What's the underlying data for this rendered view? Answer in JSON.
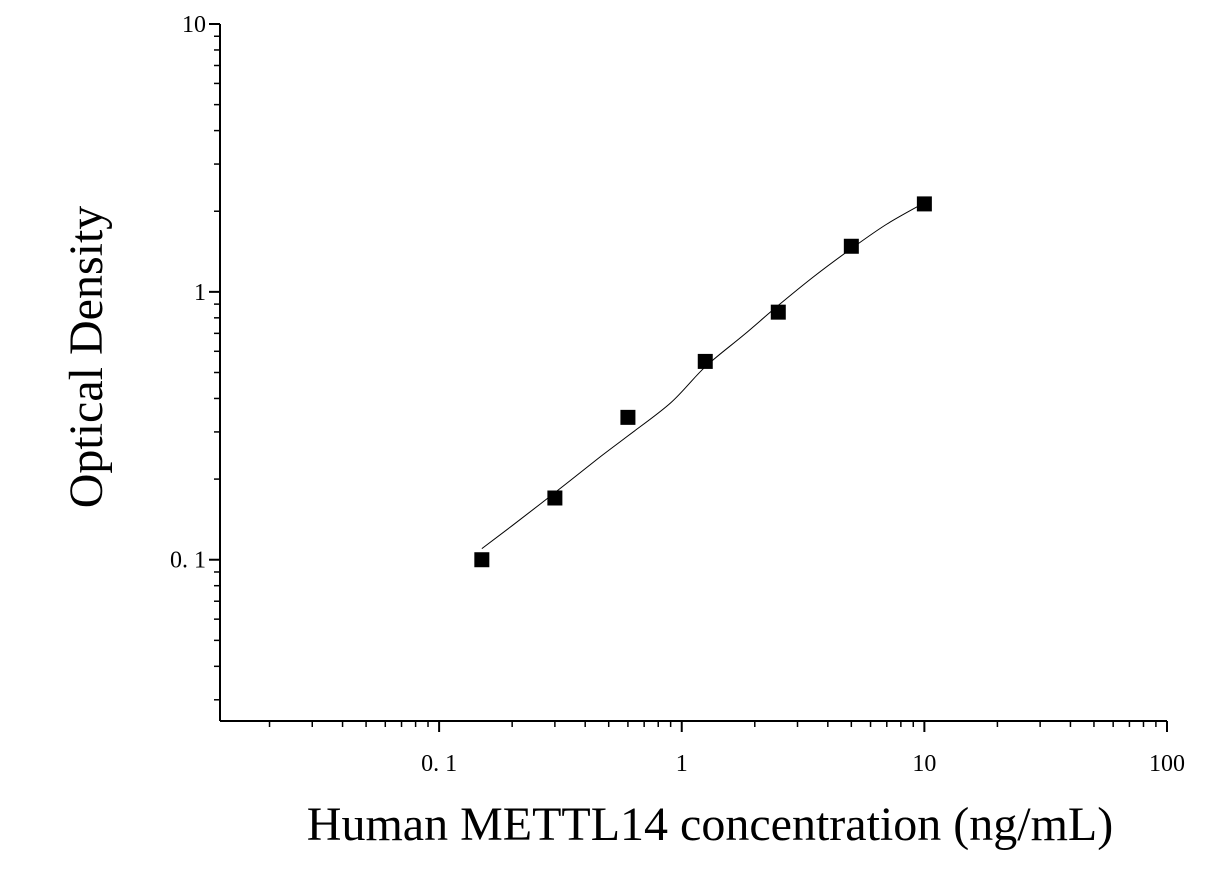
{
  "chart_data": {
    "type": "scatter",
    "title": "",
    "xlabel": "Human METTL14 concentration (ng/mL)",
    "ylabel": "Optical Density",
    "x_scale": "log",
    "y_scale": "log",
    "xlim": [
      0.0125,
      100
    ],
    "ylim": [
      0.025,
      10
    ],
    "x_ticks": [
      {
        "value": 0.1,
        "label": "0. 1"
      },
      {
        "value": 1,
        "label": "1"
      },
      {
        "value": 10,
        "label": "10"
      },
      {
        "value": 100,
        "label": "100"
      }
    ],
    "y_ticks": [
      {
        "value": 0.1,
        "label": "0. 1"
      },
      {
        "value": 1,
        "label": "1"
      },
      {
        "value": 10,
        "label": "10"
      }
    ],
    "grid": false,
    "series": [
      {
        "type": "scatter",
        "marker": "square",
        "color": "#000000",
        "x": [
          0.15,
          0.3,
          0.6,
          1.25,
          2.5,
          5,
          10
        ],
        "y": [
          0.1,
          0.17,
          0.34,
          0.55,
          0.84,
          1.48,
          2.13
        ]
      },
      {
        "type": "line",
        "color": "#000000",
        "x": [
          0.15,
          0.2,
          0.3,
          0.45,
          0.6,
          0.9,
          1.25,
          1.8,
          2.5,
          3.5,
          5,
          7,
          10
        ],
        "y": [
          0.11,
          0.134,
          0.178,
          0.238,
          0.29,
          0.385,
          0.525,
          0.69,
          0.89,
          1.14,
          1.45,
          1.79,
          2.15
        ]
      }
    ]
  }
}
